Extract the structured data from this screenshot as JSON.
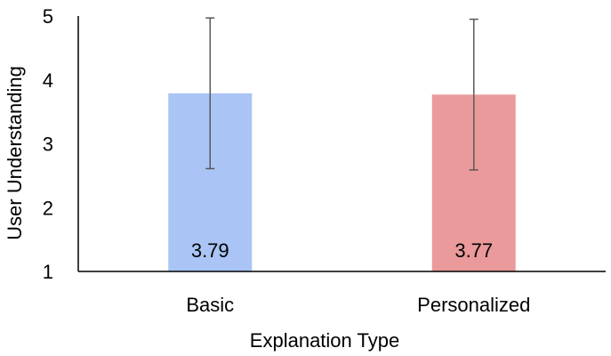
{
  "chart_data": {
    "type": "bar",
    "title": "",
    "xlabel": "Explanation Type",
    "ylabel": "User Understanding",
    "categories": [
      "Basic",
      "Personalized"
    ],
    "values": [
      3.79,
      3.77
    ],
    "data_labels": [
      "3.79",
      "3.77"
    ],
    "error_bars": [
      {
        "low": 2.61,
        "high": 4.97
      },
      {
        "low": 2.59,
        "high": 4.95
      }
    ],
    "bar_colors": [
      "#a9c4f5",
      "#ea9a9b"
    ],
    "error_bar_color": "#595959",
    "axis_color": "#000000",
    "ylim": [
      1,
      5
    ],
    "yticks": [
      1,
      2,
      3,
      4,
      5
    ],
    "grid": false,
    "legend": "none"
  }
}
